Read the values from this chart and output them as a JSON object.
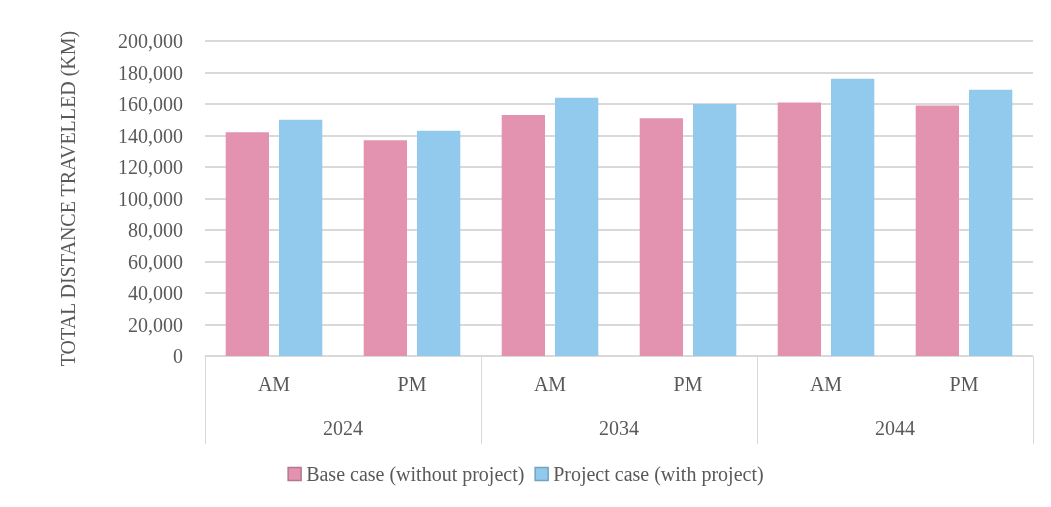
{
  "chart_data": {
    "type": "bar",
    "ylabel": "TOTAL DISTANCE TRAVELLED (KM)",
    "categories": [
      "AM",
      "PM",
      "AM",
      "PM",
      "AM",
      "PM"
    ],
    "annotations": [
      "2024",
      "2034",
      "2044"
    ],
    "series": [
      {
        "name": "Base case (without project)",
        "color": "#e393b0",
        "values": [
          142000,
          137000,
          153000,
          151000,
          161000,
          159000
        ]
      },
      {
        "name": "Project case (with project)",
        "color": "#92caee",
        "values": [
          150000,
          143000,
          164000,
          160000,
          176000,
          169000
        ]
      }
    ],
    "ylim": [
      0,
      200000
    ],
    "yticks": [
      0,
      {
        "value": 20000,
        "label": "20,000"
      },
      {
        "value": 40000,
        "label": "40,000"
      },
      {
        "value": 60000,
        "label": "60,000"
      },
      {
        "value": 80000,
        "label": "80,000"
      },
      {
        "value": 100000,
        "label": "100,000"
      },
      {
        "value": 120000,
        "label": "120,000"
      },
      {
        "value": 140000,
        "label": "140,000"
      },
      {
        "value": 160000,
        "label": "160,000"
      },
      {
        "value": 180000,
        "label": "180,000"
      },
      {
        "value": 200000,
        "label": "200,000"
      }
    ],
    "grid": "y",
    "legend": "bottom"
  }
}
